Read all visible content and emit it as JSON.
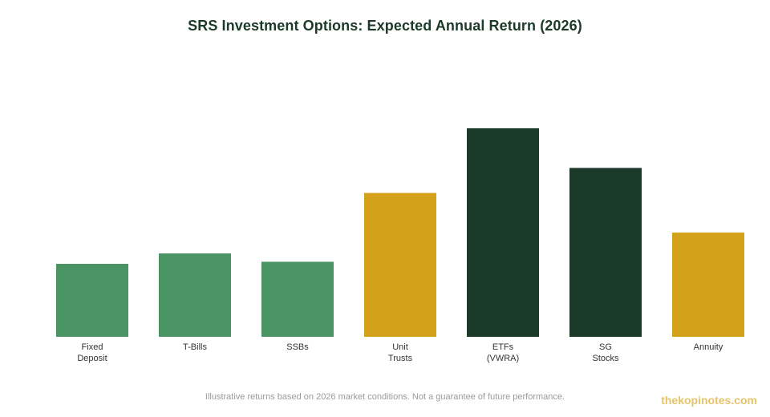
{
  "chart_data": {
    "type": "bar",
    "title": "SRS Investment Options: Expected Annual Return (2026)",
    "xlabel": "",
    "ylabel": "",
    "ylim": [
      0,
      12
    ],
    "grid": false,
    "legend": "none",
    "categories": [
      [
        "Fixed",
        "Deposit"
      ],
      [
        "T-Bills"
      ],
      [
        "SSBs"
      ],
      [
        "Unit",
        "Trusts"
      ],
      [
        "ETFs",
        "(VWRA)"
      ],
      [
        "SG",
        "Stocks"
      ],
      [
        "Annuity"
      ]
    ],
    "values": [
      3.5,
      4.0,
      3.6,
      6.9,
      10.0,
      8.1,
      5.0
    ],
    "colors": [
      "#4a9464",
      "#4a9464",
      "#4a9464",
      "#d4a11b",
      "#1b3a2a",
      "#1b3a2a",
      "#d4a11b"
    ]
  },
  "footer": {
    "note": "Illustrative returns based on 2026 market conditions. Not a guarantee of future performance.",
    "brand": "thekopinotes.com"
  }
}
